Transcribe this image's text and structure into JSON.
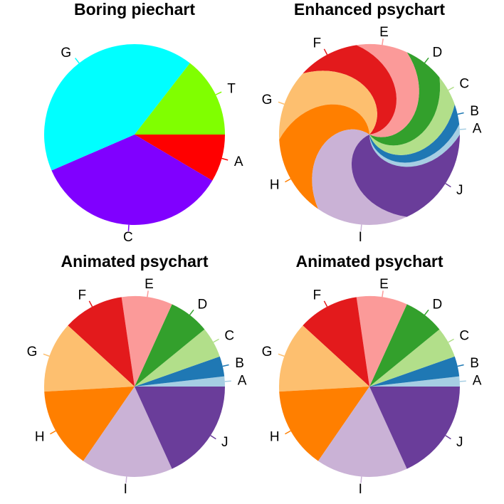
{
  "chart_data": [
    {
      "type": "pie",
      "title": "Boring piechart",
      "categories": [
        "A",
        "C",
        "G",
        "T"
      ],
      "values": [
        8.5,
        35,
        42,
        14.5
      ],
      "colors": [
        "#ff0000",
        "#8000ff",
        "#00ffff",
        "#80ff00"
      ],
      "start_angle_deg": 0,
      "direction": "clockwise"
    },
    {
      "type": "pie",
      "style": "swirl",
      "title": "Enhanced psychart",
      "categories": [
        "A",
        "B",
        "C",
        "D",
        "E",
        "F",
        "G",
        "H",
        "I",
        "J"
      ],
      "values": [
        1.8,
        3.6,
        5.5,
        7.3,
        9.1,
        10.9,
        12.7,
        14.5,
        16.4,
        18.2
      ],
      "colors": [
        "#a6cee3",
        "#1f78b4",
        "#b2df8a",
        "#33a02c",
        "#fb9a99",
        "#e31a1c",
        "#fdbf6f",
        "#ff7f00",
        "#cab2d6",
        "#6a3d9a"
      ],
      "start_angle_deg": 0,
      "direction": "counterclockwise"
    },
    {
      "type": "pie",
      "title": "Animated psychart",
      "categories": [
        "A",
        "B",
        "C",
        "D",
        "E",
        "F",
        "G",
        "H",
        "I",
        "J"
      ],
      "values": [
        1.8,
        3.6,
        5.5,
        7.3,
        9.1,
        10.9,
        12.7,
        14.5,
        16.4,
        18.2
      ],
      "colors": [
        "#a6cee3",
        "#1f78b4",
        "#b2df8a",
        "#33a02c",
        "#fb9a99",
        "#e31a1c",
        "#fdbf6f",
        "#ff7f00",
        "#cab2d6",
        "#6a3d9a"
      ],
      "start_angle_deg": 0,
      "direction": "counterclockwise"
    },
    {
      "type": "pie",
      "title": "Animated psychart",
      "categories": [
        "A",
        "B",
        "C",
        "D",
        "E",
        "F",
        "G",
        "H",
        "I",
        "J"
      ],
      "values": [
        1.8,
        3.6,
        5.5,
        7.3,
        9.1,
        10.9,
        12.7,
        14.5,
        16.4,
        18.2
      ],
      "colors": [
        "#a6cee3",
        "#1f78b4",
        "#b2df8a",
        "#33a02c",
        "#fb9a99",
        "#e31a1c",
        "#fdbf6f",
        "#ff7f00",
        "#cab2d6",
        "#6a3d9a"
      ],
      "start_angle_deg": 0,
      "direction": "counterclockwise"
    }
  ]
}
